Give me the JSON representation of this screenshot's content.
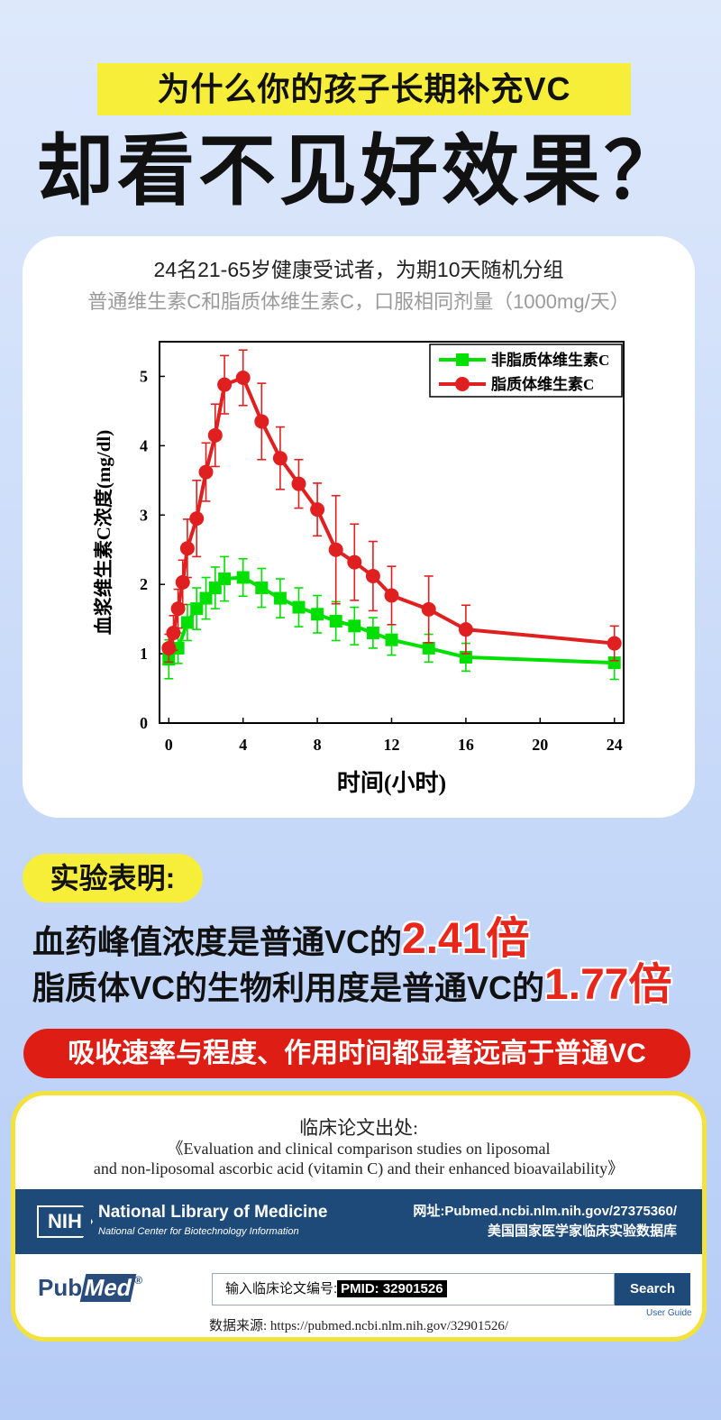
{
  "headline": {
    "top": "为什么你的孩子长期补充VC",
    "main": "却看不见好效果？"
  },
  "study": {
    "line1": "24名21-65岁健康受试者，为期10天随机分组",
    "line2": "普通维生素C和脂质体维生素C，口服相同剂量（1000mg/天）"
  },
  "chart_data": {
    "type": "line",
    "xlabel": "时间(小时)",
    "ylabel": "血浆维生素C浓度(mg/dl)",
    "xlim": [
      -0.5,
      24.5
    ],
    "ylim": [
      0,
      5.5
    ],
    "x_ticks": [
      0,
      4,
      8,
      12,
      16,
      20,
      24
    ],
    "y_ticks": [
      0,
      1,
      2,
      3,
      4,
      5
    ],
    "grid": false,
    "legend_position": "top-right",
    "series": [
      {
        "name": "非脂质体维生素C",
        "color": "#00e000",
        "marker": "square",
        "x": [
          0,
          0.5,
          1,
          1.5,
          2,
          2.5,
          3,
          4,
          5,
          6,
          7,
          8,
          9,
          10,
          11,
          12,
          14,
          16,
          24
        ],
        "y": [
          0.92,
          1.08,
          1.45,
          1.65,
          1.8,
          1.95,
          2.08,
          2.1,
          1.95,
          1.8,
          1.67,
          1.57,
          1.47,
          1.4,
          1.3,
          1.2,
          1.08,
          0.95,
          0.87
        ],
        "err": [
          0.28,
          0.22,
          0.26,
          0.3,
          0.3,
          0.3,
          0.32,
          0.27,
          0.28,
          0.28,
          0.28,
          0.27,
          0.28,
          0.27,
          0.22,
          0.22,
          0.2,
          0.2,
          0.24
        ]
      },
      {
        "name": "脂质体维生素C",
        "color": "#e02020",
        "marker": "circle",
        "x": [
          0,
          0.25,
          0.5,
          0.75,
          1,
          1.5,
          2,
          2.5,
          3,
          4,
          5,
          6,
          7,
          8,
          9,
          10,
          11,
          12,
          14,
          16,
          24
        ],
        "y": [
          1.08,
          1.3,
          1.65,
          2.03,
          2.52,
          2.95,
          3.62,
          4.15,
          4.88,
          4.98,
          4.35,
          3.82,
          3.45,
          3.08,
          2.5,
          2.32,
          2.12,
          1.84,
          1.64,
          1.35,
          1.15
        ],
        "err": [
          0.2,
          0.25,
          0.28,
          0.32,
          0.42,
          0.55,
          0.42,
          0.45,
          0.42,
          0.4,
          0.55,
          0.45,
          0.35,
          0.38,
          0.78,
          0.55,
          0.5,
          0.42,
          0.48,
          0.35,
          0.25
        ]
      }
    ]
  },
  "findings": {
    "badge": "实验表明:",
    "line1_text": "血药峰值浓度是普通VC的",
    "line1_value": "2.41倍",
    "line2_text": "脂质体VC的生物利用度是普通VC的",
    "line2_value": "1.77倍",
    "banner": "吸收速率与程度、作用时间都显著远高于普通VC"
  },
  "source": {
    "title": "临床论文出处:",
    "paper_line1": "《Evaluation and clinical comparison studies on liposomal",
    "paper_line2": "and non-liposomal ascorbic acid (vitamin C) and their enhanced bioavailability》",
    "nih_logo": "NIH",
    "nlm_name": "National Library of Medicine",
    "nlm_sub": "National Center for Biotechnology Information",
    "url_line": "网址:Pubmed.ncbi.nlm.nih.gov/27375360/",
    "db_line": "美国国家医学家临床实验数据库",
    "pubmed_pub": "Pub",
    "pubmed_med": "Med",
    "pubmed_reg": "®",
    "search_label": "输入临床论文编号:",
    "search_pmid": "PMID: 32901526",
    "search_button": "Search",
    "user_guide": "User Guide",
    "data_source": "数据来源: https://pubmed.ncbi.nlm.nih.gov/32901526/"
  }
}
